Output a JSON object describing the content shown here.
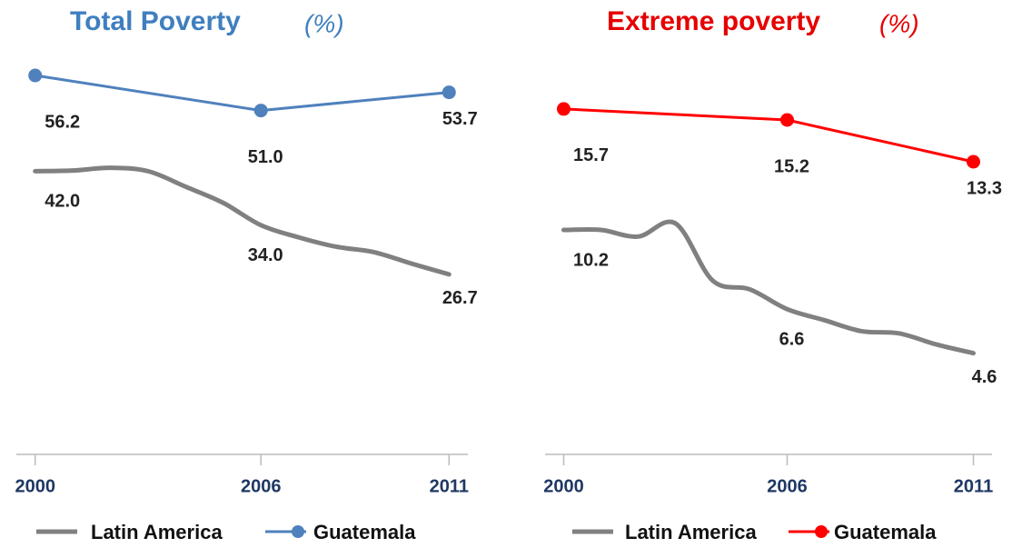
{
  "chart_data": [
    {
      "type": "line",
      "title": "Total Poverty",
      "subtitle": "(%)",
      "title_color": "#3f7fbf",
      "xlim": [
        1999.5,
        2011.5
      ],
      "xticks": [
        2000,
        2006,
        2011
      ],
      "ylim": [
        0,
        62
      ],
      "series": [
        {
          "name": "Latin America",
          "color": "#808080",
          "marker": false,
          "x": [
            2000,
            2001,
            2002,
            2003,
            2004,
            2005,
            2006,
            2007,
            2008,
            2009,
            2010,
            2011
          ],
          "values": [
            42.0,
            42.1,
            42.5,
            42.0,
            39.7,
            37.3,
            34.0,
            32.2,
            30.8,
            30.0,
            28.3,
            26.7
          ],
          "value_labels": [
            "42.0",
            null,
            null,
            null,
            null,
            null,
            "34.0",
            null,
            null,
            null,
            null,
            "26.7"
          ]
        },
        {
          "name": "Guatemala",
          "color": "#4f81bd",
          "marker": true,
          "x": [
            2000,
            2006,
            2011
          ],
          "values": [
            56.2,
            51.0,
            53.7
          ],
          "value_labels": [
            "56.2",
            "51.0",
            "53.7"
          ]
        }
      ]
    },
    {
      "type": "line",
      "title": "Extreme poverty",
      "subtitle": "(%)",
      "title_color": "#e60000",
      "xlim": [
        1999.5,
        2011.5
      ],
      "xticks": [
        2000,
        2006,
        2011
      ],
      "ylim": [
        0,
        19
      ],
      "series": [
        {
          "name": "Latin America",
          "color": "#808080",
          "marker": false,
          "x": [
            2000,
            2001,
            2002,
            2003,
            2004,
            2005,
            2006,
            2007,
            2008,
            2009,
            2010,
            2011
          ],
          "values": [
            10.2,
            10.2,
            9.9,
            10.5,
            7.9,
            7.5,
            6.6,
            6.1,
            5.6,
            5.5,
            5.0,
            4.6
          ],
          "value_labels": [
            "10.2",
            null,
            null,
            null,
            null,
            null,
            "6.6",
            null,
            null,
            null,
            null,
            "4.6"
          ]
        },
        {
          "name": "Guatemala",
          "color": "#ff0000",
          "marker": true,
          "x": [
            2000,
            2006,
            2011
          ],
          "values": [
            15.7,
            15.2,
            13.3
          ],
          "value_labels": [
            "15.7",
            "15.2",
            "13.3"
          ]
        }
      ]
    }
  ]
}
